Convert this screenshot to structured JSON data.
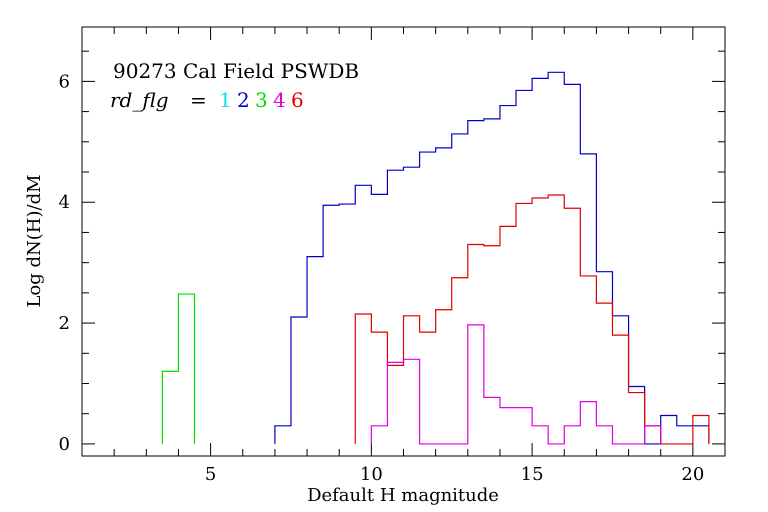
{
  "chart_data": {
    "type": "histogram",
    "title": "90273 Cal Field PSWDB",
    "legend": {
      "prefix": "rd_flg",
      "equals": "=",
      "entries": [
        {
          "label": "1",
          "color": "#00e5e5"
        },
        {
          "label": "2",
          "color": "#0000c8"
        },
        {
          "label": "3",
          "color": "#00dd00"
        },
        {
          "label": "4",
          "color": "#e000e0"
        },
        {
          "label": "6",
          "color": "#e00000"
        }
      ]
    },
    "xlabel": "Default H magnitude",
    "ylabel": "Log dN(H)/dM",
    "xlim": [
      1,
      21
    ],
    "ylim": [
      -0.2,
      6.9
    ],
    "xticks": [
      5,
      10,
      15,
      20
    ],
    "yticks": [
      0,
      2,
      4,
      6
    ],
    "x_minor_step": 1,
    "y_minor_step": 0.5,
    "bin_width": 0.5,
    "series": [
      {
        "name": "2",
        "color": "#0000c8",
        "bins": [
          [
            7.0,
            0.3
          ],
          [
            7.5,
            2.1
          ],
          [
            8.0,
            3.1
          ],
          [
            8.5,
            3.95
          ],
          [
            9.0,
            3.97
          ],
          [
            9.5,
            4.28
          ],
          [
            10.0,
            4.13
          ],
          [
            10.5,
            4.53
          ],
          [
            11.0,
            4.58
          ],
          [
            11.5,
            4.83
          ],
          [
            12.0,
            4.9
          ],
          [
            12.5,
            5.13
          ],
          [
            13.0,
            5.35
          ],
          [
            13.5,
            5.38
          ],
          [
            14.0,
            5.6
          ],
          [
            14.5,
            5.85
          ],
          [
            15.0,
            6.05
          ],
          [
            15.5,
            6.15
          ],
          [
            16.0,
            5.95
          ],
          [
            16.5,
            4.8
          ],
          [
            17.0,
            2.85
          ],
          [
            17.5,
            2.12
          ],
          [
            18.0,
            0.95
          ],
          [
            18.5,
            0.0
          ],
          [
            19.0,
            0.47
          ],
          [
            19.5,
            0.3
          ],
          [
            20.0,
            0.3
          ]
        ]
      },
      {
        "name": "6",
        "color": "#e00000",
        "bins": [
          [
            9.5,
            2.15
          ],
          [
            10.0,
            1.85
          ],
          [
            10.5,
            1.3
          ],
          [
            11.0,
            2.12
          ],
          [
            11.5,
            1.85
          ],
          [
            12.0,
            2.22
          ],
          [
            12.5,
            2.75
          ],
          [
            13.0,
            3.3
          ],
          [
            13.5,
            3.28
          ],
          [
            14.0,
            3.6
          ],
          [
            14.5,
            3.98
          ],
          [
            15.0,
            4.07
          ],
          [
            15.5,
            4.12
          ],
          [
            16.0,
            3.9
          ],
          [
            16.5,
            2.78
          ],
          [
            17.0,
            2.33
          ],
          [
            17.5,
            1.8
          ],
          [
            18.0,
            0.85
          ],
          [
            18.5,
            0.3
          ],
          [
            19.0,
            0.0
          ],
          [
            19.5,
            0.0
          ],
          [
            20.0,
            0.47
          ]
        ]
      },
      {
        "name": "4",
        "color": "#e000e0",
        "bins": [
          [
            10.0,
            0.3
          ],
          [
            10.5,
            1.35
          ],
          [
            11.0,
            1.4
          ],
          [
            11.5,
            0.0
          ],
          [
            12.0,
            0.0
          ],
          [
            12.5,
            0.0
          ],
          [
            13.0,
            1.97
          ],
          [
            13.5,
            0.77
          ],
          [
            14.0,
            0.6
          ],
          [
            14.5,
            0.6
          ],
          [
            15.0,
            0.3
          ],
          [
            15.5,
            0.0
          ],
          [
            16.0,
            0.3
          ],
          [
            16.5,
            0.7
          ],
          [
            17.0,
            0.3
          ],
          [
            17.5,
            0.0
          ],
          [
            18.0,
            0.0
          ],
          [
            18.5,
            0.3
          ]
        ]
      },
      {
        "name": "3",
        "color": "#00dd00",
        "bins": [
          [
            3.5,
            1.2
          ],
          [
            4.0,
            2.48
          ]
        ]
      }
    ]
  }
}
